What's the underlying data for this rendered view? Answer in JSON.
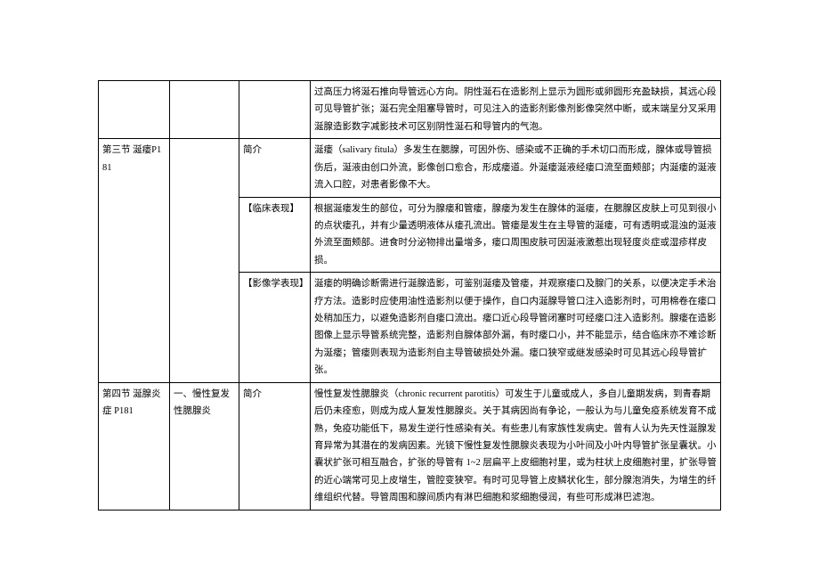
{
  "rows": [
    {
      "c1": "",
      "c2": "",
      "c3": "",
      "c4": "过高压力将涎石推向导管远心方向。阴性涎石在造影剂上显示为圆形或卵圆形充盈缺损，其远心段可见导管扩张；涎石完全阻塞导管时，可见注入的造影剂影像剂影像突然中断，或末端呈分叉采用涎腺造影数字减影技术可区别阴性涎石和导管内的气泡。"
    },
    {
      "c1": "第三节 涎瘘P181",
      "c2": "",
      "c3": "简介",
      "c4": "涎瘘（salivary fitula）多发生在腮腺，可因外伤、感染或不正确的手术切口而形成，腺体或导管损伤后，涎液由创口外流，影像创口愈合，形成瘘道。外涎瘘涎液经瘘口流至面颊部；内涎瘘的涎液流入口腔，对患者影像不大。"
    },
    {
      "c1": "",
      "c2": "",
      "c3": "【临床表现】",
      "c4": "根据涎瘘发生的部位，可分为腺瘘和管瘘，腺瘘为发生在腺体的涎瘘，在腮腺区皮肤上可见到很小的点状瘘孔，并有少量透明液体从瘘孔流出。管瘘是发生在主导管的涎瘘，可有透明或混浊的涎液外流至面颊部。进食时分泌物排出量增多，瘘口周围皮肤可因涎液激惹出现轻度炎症或湿疹样皮损。"
    },
    {
      "c1": "",
      "c2": "",
      "c3": "【影像学表现】",
      "c4": "涎瘘的明确诊断需进行涎腺造影，可鉴别涎瘘及管瘘，并观察瘘口及腺门的关系，以便决定手术治疗方法。造影时应使用油性造影剂以便于操作，自口内涎腺导管口注入造影剂时，可用棉卷在瘘口处稍加压力，以避免造影剂自瘘口流出。瘘口近心段导管闭塞时可经瘘口注入造影剂。腺瘘在造影图像上显示导管系统完整，造影剂自腺体部外漏，有时瘘口小，并不能显示，结合临床亦不难诊断为涎瘘；管瘘则表现为造影剂自主导管破损处外漏。瘘口狭窄或继发感染时可见其远心段导管扩张。"
    },
    {
      "c1": "第四节 涎腺炎症\nP181",
      "c2": "一、慢性复发性腮腺炎",
      "c3": "简介",
      "c4": "慢性复发性腮腺炎（chronic recurrent parotitis）可发生于儿童或成人，多自儿童期发病，到青春期后仍未痊愈，则成为成人复发性腮腺炎。关于其病因尚有争论，一般认为与儿童免疫系统发育不成熟，免疫功能低下，易发生逆行性感染有关。有些患儿有家族性发病史。曾有人认为先天性涎腺发育异常为其潜在的发病因素。光镜下慢性复发性腮腺炎表现为小叶间及小叶内导管扩张呈囊状。小囊状扩张可相互融合，扩张的导管有 1~2 层扁平上皮细胞衬里，或为柱状上皮细胞衬里，扩张导管的近心端常可见上皮增生，管腔变狭窄。有时可见导管上皮鳞状化生，部分腺泡消失，为增生的纤维组织代替。导管周围和腺间质内有淋巴细胞和浆细胞侵润，有些可形成淋巴滤泡。"
    }
  ]
}
